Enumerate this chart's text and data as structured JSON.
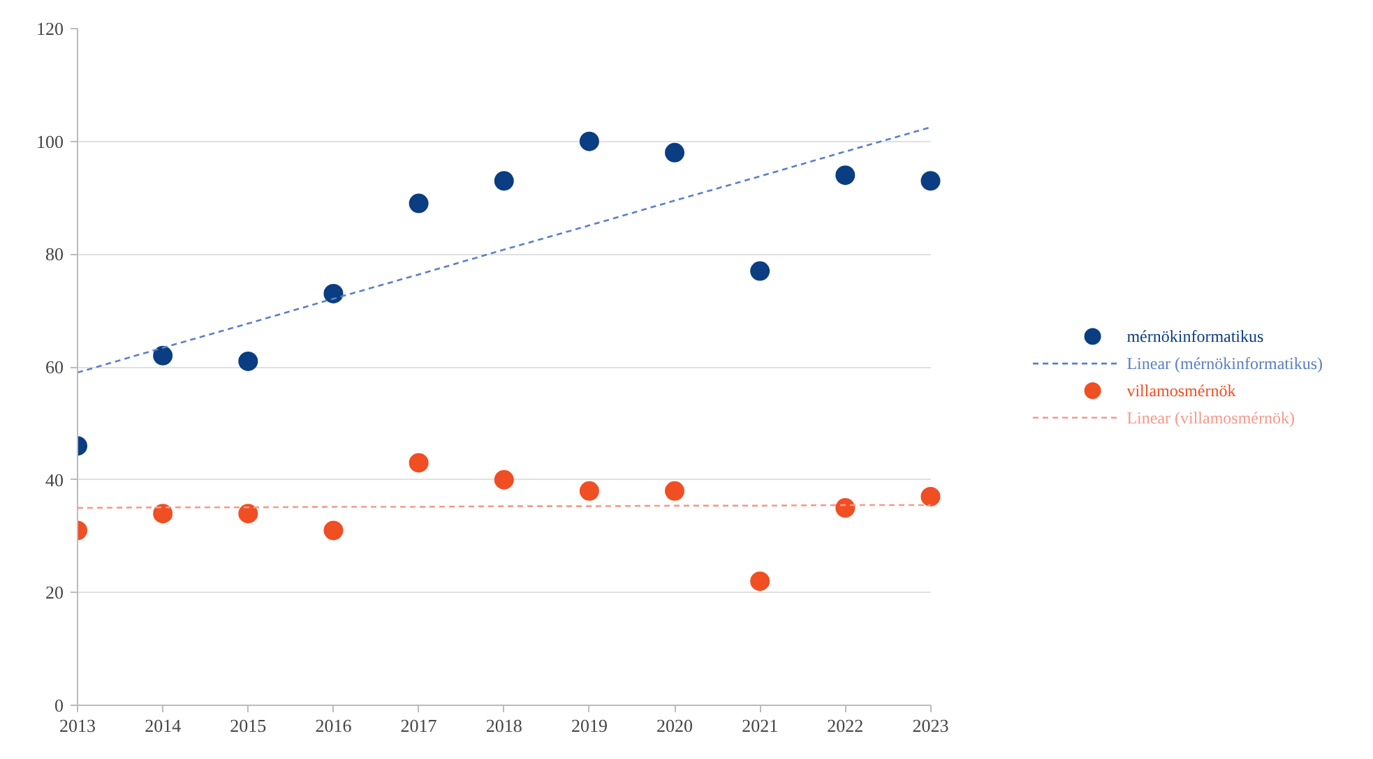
{
  "chart_data": {
    "type": "scatter",
    "x": [
      2013,
      2014,
      2015,
      2016,
      2017,
      2018,
      2019,
      2020,
      2021,
      2022,
      2023
    ],
    "series": [
      {
        "name": "mérnökinformatikus",
        "marker": "circle",
        "color": "#0b3d82",
        "values": [
          46,
          62,
          61,
          73,
          89,
          93,
          100,
          98,
          77,
          94,
          93
        ]
      },
      {
        "name": "Linear (mérnökinformatikus)",
        "type": "line",
        "line_style": "dashed",
        "color": "#5b7fc4",
        "values": [
          59,
          63.4,
          67.7,
          72.1,
          76.4,
          80.8,
          85.1,
          89.5,
          93.8,
          98.2,
          102.5
        ]
      },
      {
        "name": "villamosmérnök",
        "marker": "circle",
        "color": "#f04e23",
        "values": [
          31,
          34,
          34,
          31,
          43,
          40,
          38,
          38,
          22,
          35,
          37
        ]
      },
      {
        "name": "Linear (villamosmérnök)",
        "type": "line",
        "line_style": "dashed",
        "color": "#f49a8c",
        "values": [
          35,
          35.1,
          35.1,
          35.2,
          35.2,
          35.3,
          35.3,
          35.4,
          35.4,
          35.5,
          35.5
        ]
      }
    ],
    "xlim": [
      2013,
      2023
    ],
    "xticks": [
      2013,
      2014,
      2015,
      2016,
      2017,
      2018,
      2019,
      2020,
      2021,
      2022,
      2023
    ],
    "ylim": [
      0,
      120
    ],
    "yticks": [
      0,
      20,
      40,
      60,
      80,
      100,
      120
    ],
    "grid": "y",
    "legend": "right"
  }
}
